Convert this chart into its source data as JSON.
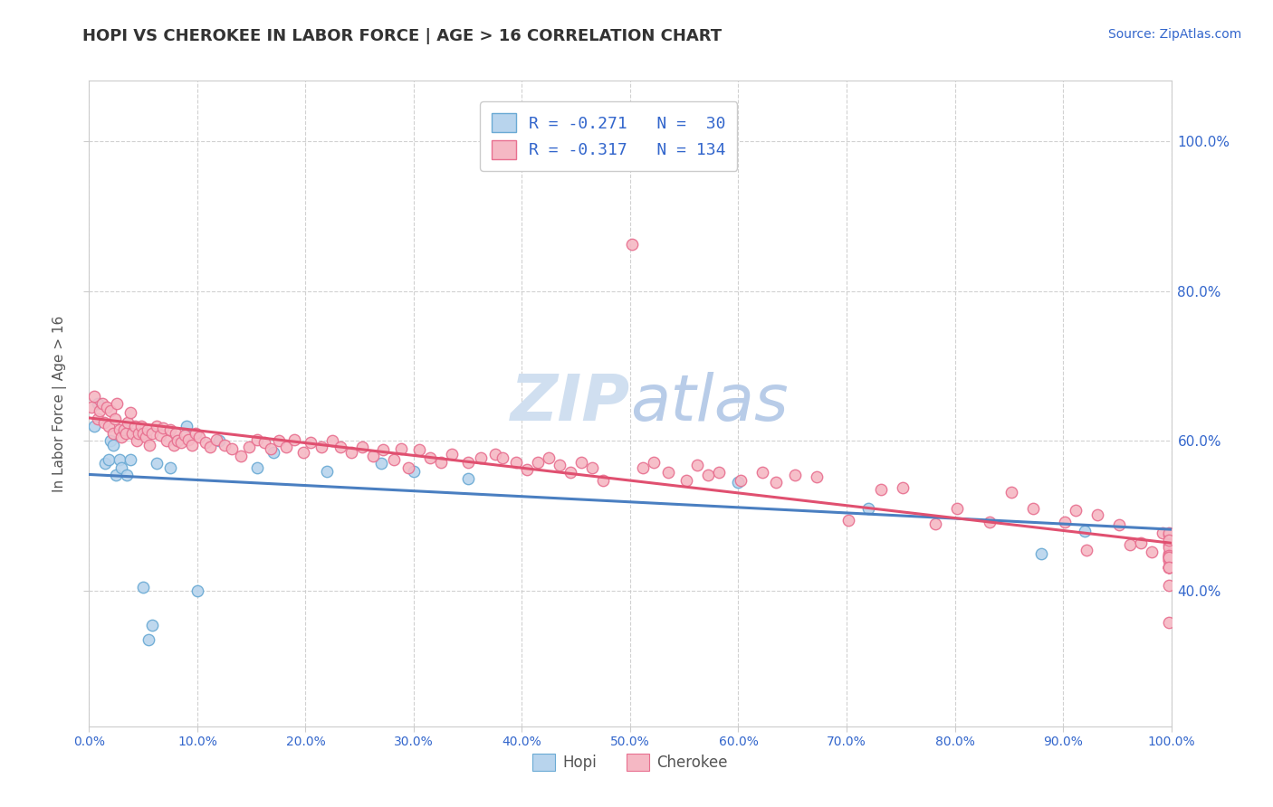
{
  "title": "HOPI VS CHEROKEE IN LABOR FORCE | AGE > 16 CORRELATION CHART",
  "source_text": "Source: ZipAtlas.com",
  "ylabel": "In Labor Force | Age > 16",
  "background_color": "#ffffff",
  "grid_color": "#cccccc",
  "hopi_fill_color": "#b8d4ed",
  "hopi_edge_color": "#6aaad4",
  "hopi_line_color": "#4a7fc1",
  "cherokee_fill_color": "#f5b8c4",
  "cherokee_edge_color": "#e87090",
  "cherokee_line_color": "#e05070",
  "legend_text_color": "#3366cc",
  "title_color": "#333333",
  "axis_tick_color": "#3366cc",
  "watermark_color": "#d0dff0",
  "hopi_R": -0.271,
  "hopi_N": 30,
  "cherokee_R": -0.317,
  "cherokee_N": 134,
  "xlim": [
    0.0,
    1.0
  ],
  "ylim": [
    0.22,
    1.08
  ],
  "x_ticks": [
    0.0,
    0.1,
    0.2,
    0.3,
    0.4,
    0.5,
    0.6,
    0.7,
    0.8,
    0.9,
    1.0
  ],
  "y_ticks": [
    0.4,
    0.6,
    0.8,
    1.0
  ],
  "hopi_x": [
    0.005,
    0.008,
    0.015,
    0.018,
    0.02,
    0.022,
    0.025,
    0.028,
    0.03,
    0.035,
    0.038,
    0.05,
    0.055,
    0.058,
    0.062,
    0.075,
    0.082,
    0.09,
    0.1,
    0.12,
    0.155,
    0.17,
    0.22,
    0.27,
    0.3,
    0.35,
    0.6,
    0.72,
    0.88,
    0.92
  ],
  "hopi_y": [
    0.62,
    0.65,
    0.57,
    0.575,
    0.6,
    0.595,
    0.555,
    0.575,
    0.565,
    0.555,
    0.575,
    0.405,
    0.335,
    0.355,
    0.57,
    0.565,
    0.6,
    0.62,
    0.4,
    0.6,
    0.565,
    0.585,
    0.56,
    0.57,
    0.56,
    0.55,
    0.545,
    0.51,
    0.45,
    0.48
  ],
  "cherokee_x": [
    0.002,
    0.005,
    0.008,
    0.01,
    0.012,
    0.014,
    0.016,
    0.018,
    0.02,
    0.022,
    0.024,
    0.026,
    0.028,
    0.03,
    0.032,
    0.034,
    0.036,
    0.038,
    0.04,
    0.042,
    0.044,
    0.046,
    0.048,
    0.05,
    0.052,
    0.054,
    0.056,
    0.058,
    0.062,
    0.066,
    0.068,
    0.072,
    0.075,
    0.078,
    0.08,
    0.082,
    0.085,
    0.088,
    0.092,
    0.095,
    0.098,
    0.102,
    0.108,
    0.112,
    0.118,
    0.125,
    0.132,
    0.14,
    0.148,
    0.155,
    0.162,
    0.168,
    0.175,
    0.182,
    0.19,
    0.198,
    0.205,
    0.215,
    0.225,
    0.232,
    0.242,
    0.252,
    0.262,
    0.272,
    0.282,
    0.288,
    0.295,
    0.305,
    0.315,
    0.325,
    0.335,
    0.35,
    0.362,
    0.375,
    0.382,
    0.395,
    0.405,
    0.415,
    0.425,
    0.435,
    0.445,
    0.455,
    0.465,
    0.475,
    0.502,
    0.512,
    0.522,
    0.535,
    0.552,
    0.562,
    0.572,
    0.582,
    0.602,
    0.622,
    0.635,
    0.652,
    0.672,
    0.702,
    0.732,
    0.752,
    0.782,
    0.802,
    0.832,
    0.852,
    0.872,
    0.902,
    0.912,
    0.922,
    0.932,
    0.952,
    0.962,
    0.972,
    0.982,
    0.992,
    0.998,
    0.998,
    0.998,
    0.998,
    0.998,
    0.998,
    0.998,
    0.998,
    0.998,
    0.998,
    0.998,
    0.998,
    0.998,
    0.998,
    0.998,
    0.998,
    0.998,
    0.998,
    0.998,
    0.998
  ],
  "cherokee_y": [
    0.645,
    0.66,
    0.63,
    0.64,
    0.65,
    0.625,
    0.645,
    0.62,
    0.64,
    0.61,
    0.63,
    0.65,
    0.615,
    0.605,
    0.615,
    0.61,
    0.625,
    0.638,
    0.61,
    0.62,
    0.6,
    0.61,
    0.62,
    0.61,
    0.605,
    0.615,
    0.595,
    0.61,
    0.62,
    0.608,
    0.618,
    0.6,
    0.615,
    0.595,
    0.61,
    0.6,
    0.598,
    0.608,
    0.602,
    0.595,
    0.61,
    0.605,
    0.598,
    0.592,
    0.602,
    0.595,
    0.59,
    0.58,
    0.592,
    0.602,
    0.598,
    0.59,
    0.6,
    0.592,
    0.602,
    0.585,
    0.598,
    0.592,
    0.6,
    0.592,
    0.585,
    0.592,
    0.58,
    0.588,
    0.575,
    0.59,
    0.565,
    0.588,
    0.578,
    0.572,
    0.582,
    0.572,
    0.578,
    0.582,
    0.578,
    0.572,
    0.562,
    0.572,
    0.578,
    0.568,
    0.558,
    0.572,
    0.565,
    0.548,
    0.862,
    0.565,
    0.572,
    0.558,
    0.548,
    0.568,
    0.555,
    0.558,
    0.548,
    0.558,
    0.545,
    0.555,
    0.552,
    0.495,
    0.535,
    0.538,
    0.49,
    0.51,
    0.492,
    0.532,
    0.51,
    0.492,
    0.508,
    0.455,
    0.502,
    0.488,
    0.462,
    0.465,
    0.452,
    0.478,
    0.358,
    0.475,
    0.462,
    0.45,
    0.432,
    0.448,
    0.432,
    0.442,
    0.408,
    0.478,
    0.432,
    0.458,
    0.445,
    0.448,
    0.468,
    0.442,
    0.432,
    0.445,
    0.445,
    0.432
  ]
}
